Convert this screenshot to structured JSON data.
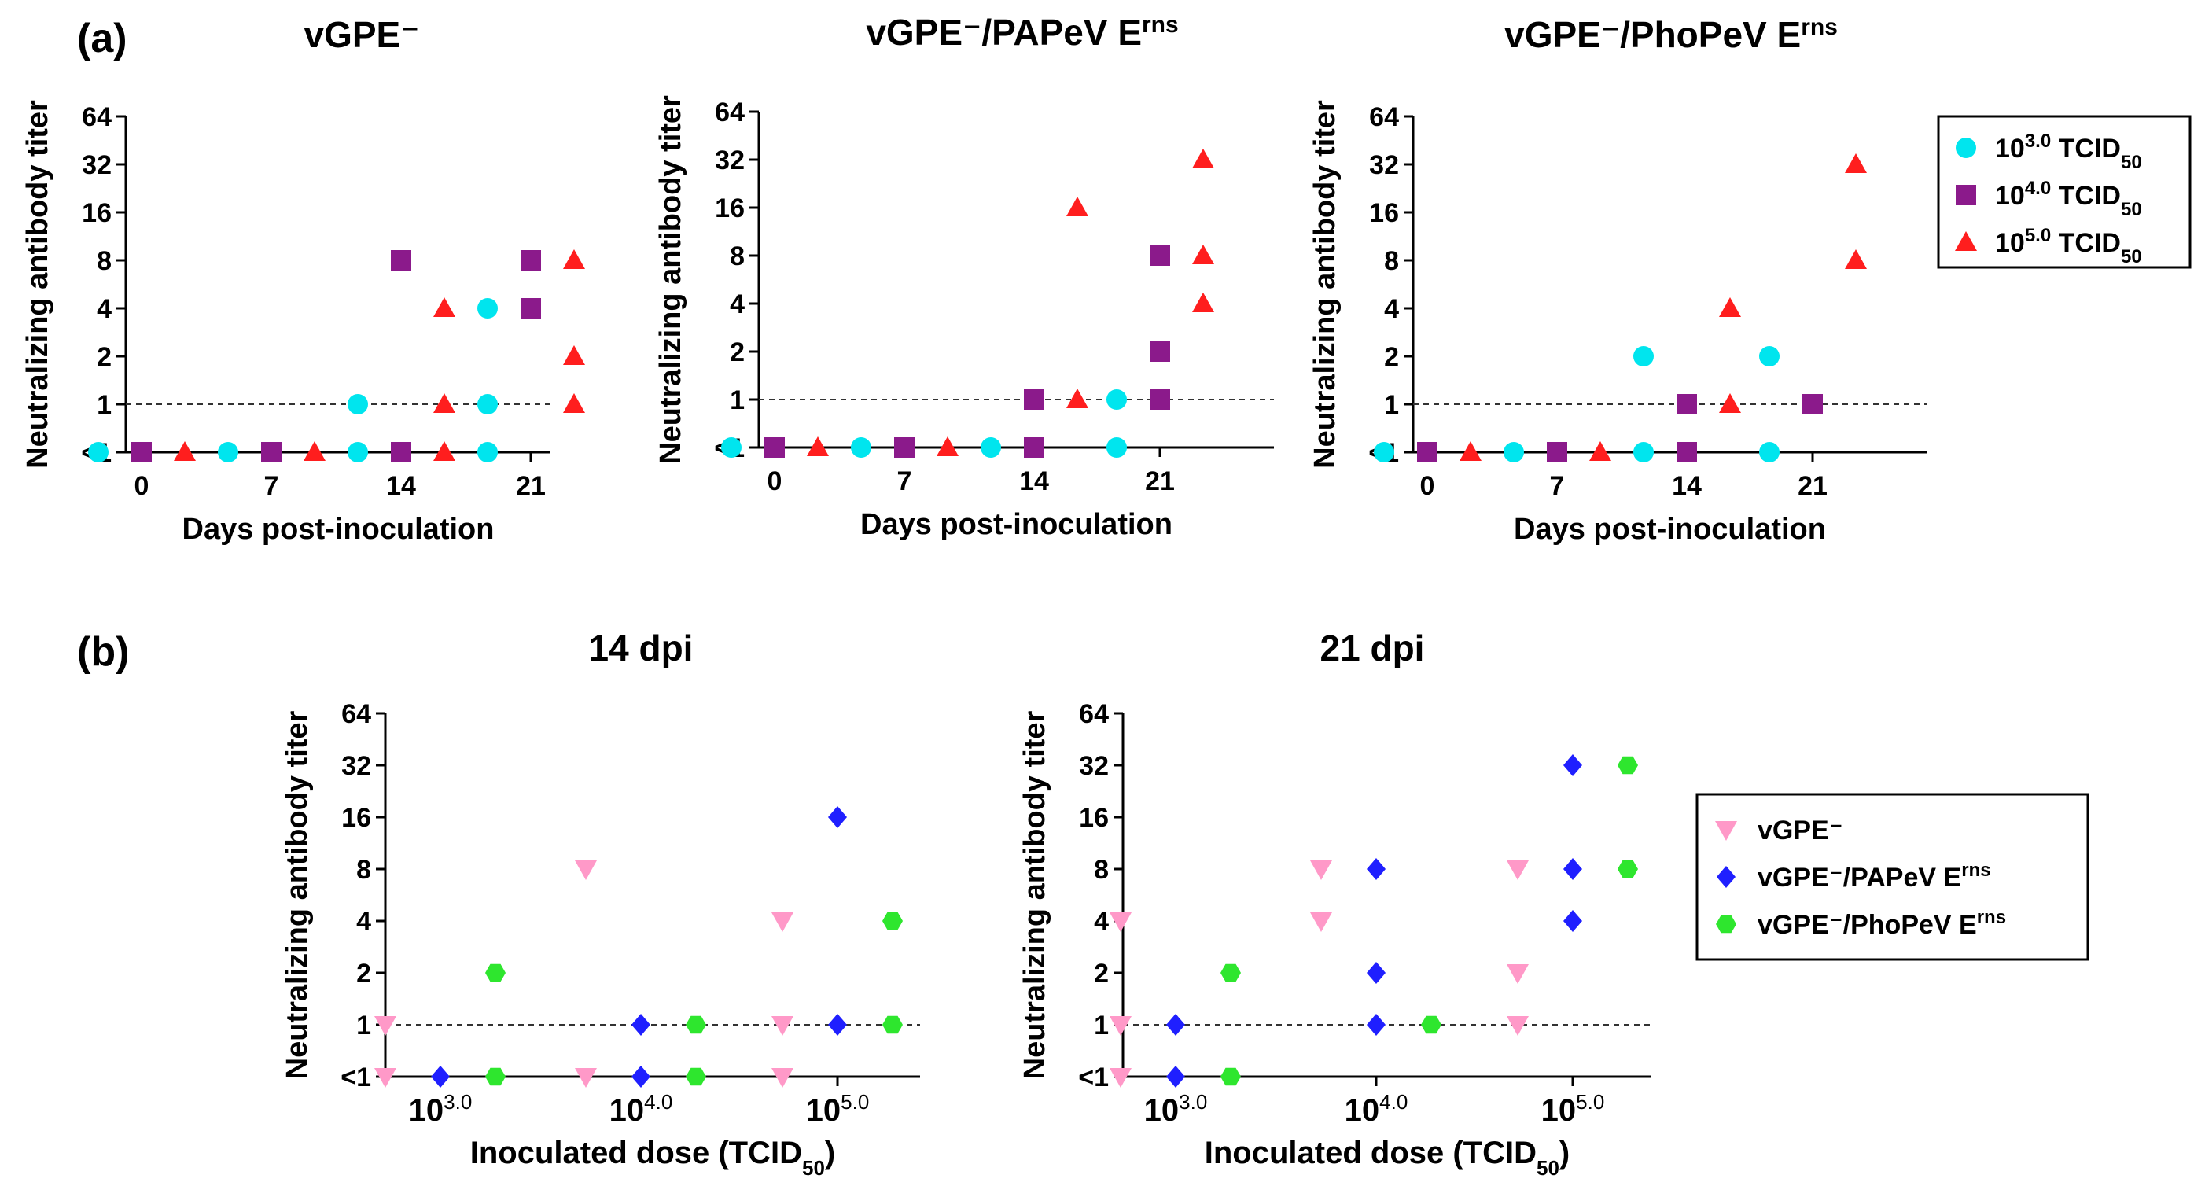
{
  "panel_labels": [
    "(a)",
    "(b)"
  ],
  "colors": {
    "dose_3": "#00e5ee",
    "dose_4": "#8b1a8b",
    "dose_5": "#ff1e1e",
    "vGPE": "#ff99c8",
    "PAPeV": "#1f1fff",
    "PhoPeV": "#2ee62e"
  },
  "legend_a": [
    {
      "base": "10",
      "exp": "3.0",
      "unit": "TCID",
      "sub": "50",
      "marker": "circle",
      "color_key": "dose_3"
    },
    {
      "base": "10",
      "exp": "4.0",
      "unit": "TCID",
      "sub": "50",
      "marker": "square",
      "color_key": "dose_4"
    },
    {
      "base": "10",
      "exp": "5.0",
      "unit": "TCID",
      "sub": "50",
      "marker": "triangle",
      "color_key": "dose_5"
    }
  ],
  "legend_b": [
    {
      "name": "vGPE⁻",
      "sup": "",
      "marker": "triangle-down",
      "color_key": "vGPE"
    },
    {
      "name": "vGPE⁻/PAPeV E",
      "sup": "rns",
      "marker": "diamond",
      "color_key": "PAPeV"
    },
    {
      "name": "vGPE⁻/PhoPeV E",
      "sup": "rns",
      "marker": "hexagon",
      "color_key": "PhoPeV"
    }
  ],
  "chart_data": [
    {
      "type": "scatter",
      "panel": "a",
      "title": "vGPE⁻",
      "title_sup": "",
      "xlabel": "Days post-inoculation",
      "ylabel": "Neutralizing antibody titer",
      "x_ticks": [
        "0",
        "7",
        "14",
        "21"
      ],
      "y_ticks": [
        "<1",
        "1",
        "2",
        "4",
        "8",
        "16",
        "32",
        "64"
      ],
      "reference_line_y": "1",
      "series": [
        {
          "name": "10^3.0 TCID50",
          "marker": "circle",
          "color_key": "dose_3",
          "points": [
            {
              "day": "0",
              "titer": "<1"
            },
            {
              "day": "7",
              "titer": "<1"
            },
            {
              "day": "14",
              "titer": "1"
            },
            {
              "day": "14",
              "titer": "<1"
            },
            {
              "day": "21",
              "titer": "4"
            },
            {
              "day": "21",
              "titer": "1"
            },
            {
              "day": "21",
              "titer": "<1"
            }
          ]
        },
        {
          "name": "10^4.0 TCID50",
          "marker": "square",
          "color_key": "dose_4",
          "points": [
            {
              "day": "0",
              "titer": "<1"
            },
            {
              "day": "7",
              "titer": "<1"
            },
            {
              "day": "14",
              "titer": "8"
            },
            {
              "day": "14",
              "titer": "<1"
            },
            {
              "day": "21",
              "titer": "8"
            },
            {
              "day": "21",
              "titer": "4"
            }
          ]
        },
        {
          "name": "10^5.0 TCID50",
          "marker": "triangle",
          "color_key": "dose_5",
          "points": [
            {
              "day": "0",
              "titer": "<1"
            },
            {
              "day": "7",
              "titer": "<1"
            },
            {
              "day": "14",
              "titer": "4"
            },
            {
              "day": "14",
              "titer": "1"
            },
            {
              "day": "14",
              "titer": "<1"
            },
            {
              "day": "21",
              "titer": "8"
            },
            {
              "day": "21",
              "titer": "2"
            },
            {
              "day": "21",
              "titer": "1"
            }
          ]
        }
      ]
    },
    {
      "type": "scatter",
      "panel": "a",
      "title": "vGPE⁻/PAPeV E",
      "title_sup": "rns",
      "xlabel": "Days post-inoculation",
      "ylabel": "Neutralizing antibody titer",
      "x_ticks": [
        "0",
        "7",
        "14",
        "21"
      ],
      "y_ticks": [
        "<1",
        "1",
        "2",
        "4",
        "8",
        "16",
        "32",
        "64"
      ],
      "reference_line_y": "1",
      "series": [
        {
          "name": "10^3.0 TCID50",
          "marker": "circle",
          "color_key": "dose_3",
          "points": [
            {
              "day": "0",
              "titer": "<1"
            },
            {
              "day": "7",
              "titer": "<1"
            },
            {
              "day": "14",
              "titer": "<1"
            },
            {
              "day": "21",
              "titer": "1"
            },
            {
              "day": "21",
              "titer": "<1"
            }
          ]
        },
        {
          "name": "10^4.0 TCID50",
          "marker": "square",
          "color_key": "dose_4",
          "points": [
            {
              "day": "0",
              "titer": "<1"
            },
            {
              "day": "7",
              "titer": "<1"
            },
            {
              "day": "14",
              "titer": "1"
            },
            {
              "day": "14",
              "titer": "<1"
            },
            {
              "day": "21",
              "titer": "8"
            },
            {
              "day": "21",
              "titer": "2"
            },
            {
              "day": "21",
              "titer": "1"
            }
          ]
        },
        {
          "name": "10^5.0 TCID50",
          "marker": "triangle",
          "color_key": "dose_5",
          "points": [
            {
              "day": "0",
              "titer": "<1"
            },
            {
              "day": "7",
              "titer": "<1"
            },
            {
              "day": "14",
              "titer": "16"
            },
            {
              "day": "14",
              "titer": "1"
            },
            {
              "day": "21",
              "titer": "32"
            },
            {
              "day": "21",
              "titer": "8"
            },
            {
              "day": "21",
              "titer": "4"
            }
          ]
        }
      ]
    },
    {
      "type": "scatter",
      "panel": "a",
      "title": "vGPE⁻/PhoPeV E",
      "title_sup": "rns",
      "xlabel": "Days post-inoculation",
      "ylabel": "Neutralizing antibody titer",
      "x_ticks": [
        "0",
        "7",
        "14",
        "21"
      ],
      "y_ticks": [
        "<1",
        "1",
        "2",
        "4",
        "8",
        "16",
        "32",
        "64"
      ],
      "reference_line_y": "1",
      "series": [
        {
          "name": "10^3.0 TCID50",
          "marker": "circle",
          "color_key": "dose_3",
          "points": [
            {
              "day": "0",
              "titer": "<1"
            },
            {
              "day": "7",
              "titer": "<1"
            },
            {
              "day": "14",
              "titer": "2"
            },
            {
              "day": "14",
              "titer": "<1"
            },
            {
              "day": "21",
              "titer": "2"
            },
            {
              "day": "21",
              "titer": "<1"
            }
          ]
        },
        {
          "name": "10^4.0 TCID50",
          "marker": "square",
          "color_key": "dose_4",
          "points": [
            {
              "day": "0",
              "titer": "<1"
            },
            {
              "day": "7",
              "titer": "<1"
            },
            {
              "day": "14",
              "titer": "1"
            },
            {
              "day": "14",
              "titer": "<1"
            },
            {
              "day": "21",
              "titer": "1"
            }
          ]
        },
        {
          "name": "10^5.0 TCID50",
          "marker": "triangle",
          "color_key": "dose_5",
          "points": [
            {
              "day": "0",
              "titer": "<1"
            },
            {
              "day": "7",
              "titer": "<1"
            },
            {
              "day": "14",
              "titer": "4"
            },
            {
              "day": "14",
              "titer": "1"
            },
            {
              "day": "21",
              "titer": "32"
            },
            {
              "day": "21",
              "titer": "8"
            }
          ]
        }
      ]
    },
    {
      "type": "scatter",
      "panel": "b",
      "title": "14 dpi",
      "xlabel": "Inoculated dose (TCID",
      "xlabel_sub": "50",
      "xlabel_end": ")",
      "ylabel": "Neutralizing antibody titer",
      "x_ticks": [
        {
          "base": "10",
          "exp": "3.0"
        },
        {
          "base": "10",
          "exp": "4.0"
        },
        {
          "base": "10",
          "exp": "5.0"
        }
      ],
      "y_ticks": [
        "<1",
        "1",
        "2",
        "4",
        "8",
        "16",
        "32",
        "64"
      ],
      "reference_line_y": "1",
      "series": [
        {
          "name": "vGPE⁻",
          "marker": "triangle-down",
          "color_key": "vGPE",
          "points": [
            {
              "dose": "10^3.0",
              "titer": "1"
            },
            {
              "dose": "10^3.0",
              "titer": "<1"
            },
            {
              "dose": "10^4.0",
              "titer": "8"
            },
            {
              "dose": "10^4.0",
              "titer": "<1"
            },
            {
              "dose": "10^5.0",
              "titer": "4"
            },
            {
              "dose": "10^5.0",
              "titer": "1"
            },
            {
              "dose": "10^5.0",
              "titer": "<1"
            }
          ]
        },
        {
          "name": "vGPE⁻/PAPeV Erns",
          "marker": "diamond",
          "color_key": "PAPeV",
          "points": [
            {
              "dose": "10^3.0",
              "titer": "<1"
            },
            {
              "dose": "10^4.0",
              "titer": "1"
            },
            {
              "dose": "10^4.0",
              "titer": "<1"
            },
            {
              "dose": "10^5.0",
              "titer": "16"
            },
            {
              "dose": "10^5.0",
              "titer": "1"
            }
          ]
        },
        {
          "name": "vGPE⁻/PhoPeV Erns",
          "marker": "hexagon",
          "color_key": "PhoPeV",
          "points": [
            {
              "dose": "10^3.0",
              "titer": "2"
            },
            {
              "dose": "10^3.0",
              "titer": "<1"
            },
            {
              "dose": "10^4.0",
              "titer": "1"
            },
            {
              "dose": "10^4.0",
              "titer": "<1"
            },
            {
              "dose": "10^5.0",
              "titer": "4"
            },
            {
              "dose": "10^5.0",
              "titer": "1"
            }
          ]
        }
      ]
    },
    {
      "type": "scatter",
      "panel": "b",
      "title": "21 dpi",
      "xlabel": "Inoculated dose (TCID",
      "xlabel_sub": "50",
      "xlabel_end": ")",
      "ylabel": "Neutralizing antibody titer",
      "x_ticks": [
        {
          "base": "10",
          "exp": "3.0"
        },
        {
          "base": "10",
          "exp": "4.0"
        },
        {
          "base": "10",
          "exp": "5.0"
        }
      ],
      "y_ticks": [
        "<1",
        "1",
        "2",
        "4",
        "8",
        "16",
        "32",
        "64"
      ],
      "reference_line_y": "1",
      "series": [
        {
          "name": "vGPE⁻",
          "marker": "triangle-down",
          "color_key": "vGPE",
          "points": [
            {
              "dose": "10^3.0",
              "titer": "4"
            },
            {
              "dose": "10^3.0",
              "titer": "1"
            },
            {
              "dose": "10^3.0",
              "titer": "<1"
            },
            {
              "dose": "10^4.0",
              "titer": "8"
            },
            {
              "dose": "10^4.0",
              "titer": "4"
            },
            {
              "dose": "10^5.0",
              "titer": "8"
            },
            {
              "dose": "10^5.0",
              "titer": "2"
            },
            {
              "dose": "10^5.0",
              "titer": "1"
            }
          ]
        },
        {
          "name": "vGPE⁻/PAPeV Erns",
          "marker": "diamond",
          "color_key": "PAPeV",
          "points": [
            {
              "dose": "10^3.0",
              "titer": "1"
            },
            {
              "dose": "10^3.0",
              "titer": "<1"
            },
            {
              "dose": "10^4.0",
              "titer": "8"
            },
            {
              "dose": "10^4.0",
              "titer": "2"
            },
            {
              "dose": "10^4.0",
              "titer": "1"
            },
            {
              "dose": "10^5.0",
              "titer": "32"
            },
            {
              "dose": "10^5.0",
              "titer": "8"
            },
            {
              "dose": "10^5.0",
              "titer": "4"
            }
          ]
        },
        {
          "name": "vGPE⁻/PhoPeV Erns",
          "marker": "hexagon",
          "color_key": "PhoPeV",
          "points": [
            {
              "dose": "10^3.0",
              "titer": "2"
            },
            {
              "dose": "10^3.0",
              "titer": "<1"
            },
            {
              "dose": "10^4.0",
              "titer": "1"
            },
            {
              "dose": "10^5.0",
              "titer": "32"
            },
            {
              "dose": "10^5.0",
              "titer": "8"
            }
          ]
        }
      ]
    }
  ]
}
